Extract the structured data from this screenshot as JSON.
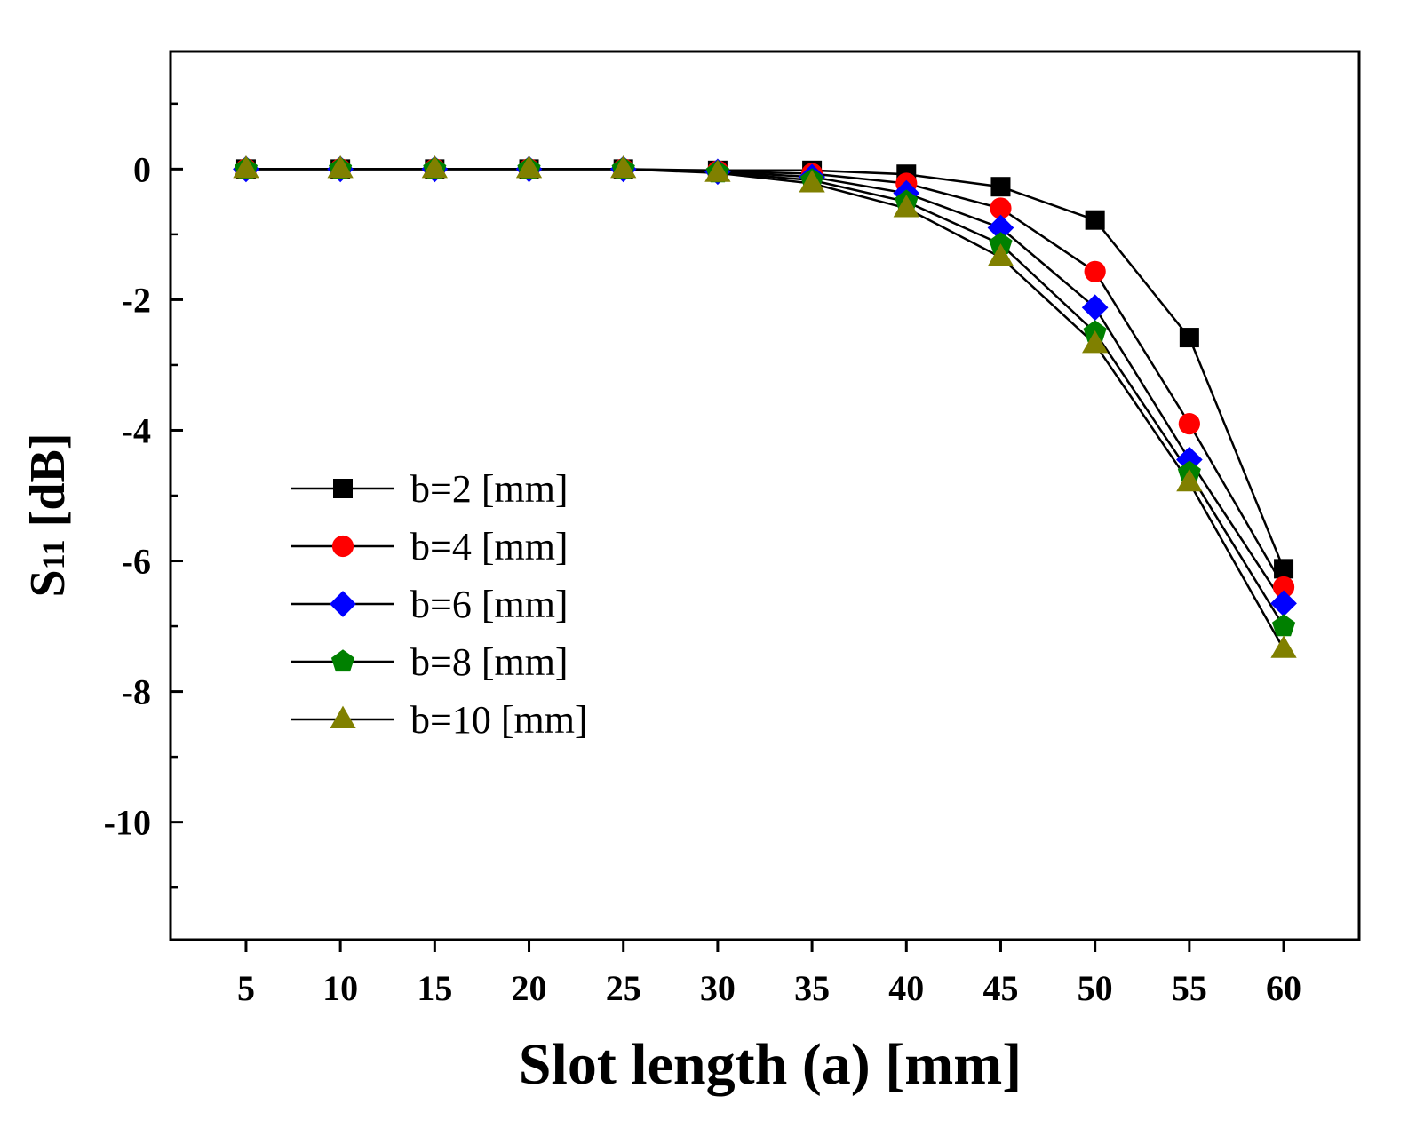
{
  "chart_data": {
    "type": "line",
    "xlabel": "Slot length (a) [mm]",
    "ylabel": {
      "main": "S",
      "sub": "11",
      "rest": " [dB]"
    },
    "x": [
      5,
      10,
      15,
      20,
      25,
      30,
      35,
      40,
      45,
      50,
      55,
      60
    ],
    "xlim": [
      1,
      64
    ],
    "ylim": [
      -11.8,
      1.8
    ],
    "x_ticks": [
      5,
      10,
      15,
      20,
      25,
      30,
      35,
      40,
      45,
      50,
      55,
      60
    ],
    "y_ticks": [
      0,
      -2,
      -4,
      -6,
      -8,
      -10
    ],
    "grid": false,
    "legend_position": "left-middle",
    "series": [
      {
        "name": "b=2 [mm]",
        "marker": "square",
        "color": "#000000",
        "values": [
          0,
          0,
          0,
          0,
          0,
          -0.02,
          -0.02,
          -0.08,
          -0.27,
          -0.78,
          -2.58,
          -6.12
        ]
      },
      {
        "name": "b=4 [mm]",
        "marker": "circle",
        "color": "#ff0000",
        "values": [
          0,
          0,
          0,
          0,
          0,
          -0.03,
          -0.07,
          -0.22,
          -0.6,
          -1.57,
          -3.9,
          -6.4
        ]
      },
      {
        "name": "b=6 [mm]",
        "marker": "diamond",
        "color": "#0000ff",
        "values": [
          0,
          0,
          0,
          0,
          0,
          -0.04,
          -0.12,
          -0.37,
          -0.9,
          -2.12,
          -4.45,
          -6.65
        ]
      },
      {
        "name": "b=8 [mm]",
        "marker": "pentagon",
        "color": "#008000",
        "values": [
          0,
          0,
          0,
          0,
          0,
          -0.05,
          -0.17,
          -0.5,
          -1.15,
          -2.5,
          -4.65,
          -7.0
        ]
      },
      {
        "name": "b=10 [mm]",
        "marker": "triangle",
        "color": "#808000",
        "values": [
          0,
          0,
          0,
          0,
          0,
          -0.06,
          -0.22,
          -0.6,
          -1.35,
          -2.68,
          -4.8,
          -7.35
        ]
      }
    ]
  }
}
